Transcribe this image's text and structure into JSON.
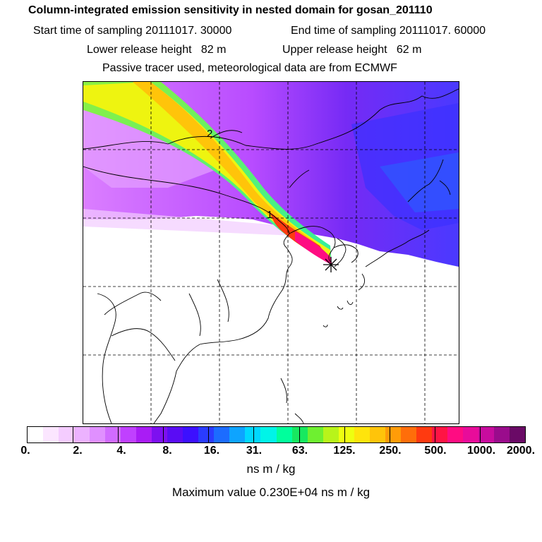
{
  "header": {
    "title": "Column-integrated emission sensitivity in nested domain for gosan_201110",
    "start_time": "Start time of sampling 20111017. 30000",
    "end_time": "End time of sampling 20111017. 60000",
    "lower_height": "Lower release height   82 m",
    "upper_height": "Upper release height   62 m",
    "tracer_note": "Passive tracer used, meteorological data are from ECMWF"
  },
  "map": {
    "markers": [
      {
        "label": "1"
      },
      {
        "label": "2"
      }
    ],
    "release_site": "gosan"
  },
  "colorbar": {
    "colors": [
      "#ffffff",
      "#fbe6ff",
      "#f4ccff",
      "#ecb2ff",
      "#e090ff",
      "#d16bff",
      "#c040ff",
      "#a91cf5",
      "#7d10f0",
      "#5a0cf4",
      "#3c10ff",
      "#2a3cff",
      "#1c6cff",
      "#0ea4ff",
      "#00d8ff",
      "#00f4e8",
      "#00ff9c",
      "#18e860",
      "#6ef030",
      "#b8f41a",
      "#eeff10",
      "#ffe40c",
      "#ffc40a",
      "#ff9c08",
      "#ff6e0a",
      "#ff3a10",
      "#ff1444",
      "#ff0c82",
      "#e80c9a",
      "#c80c9e",
      "#9a0c8c",
      "#6a0a66"
    ],
    "tick_labels": [
      "0.",
      "2.",
      "4.",
      "8.",
      "16.",
      "31.",
      "63.",
      "125.",
      "250.",
      "500.",
      "1000.",
      "2000."
    ],
    "unit": "ns m / kg"
  },
  "max_value_text": "Maximum value  0.230E+04 ns m / kg"
}
